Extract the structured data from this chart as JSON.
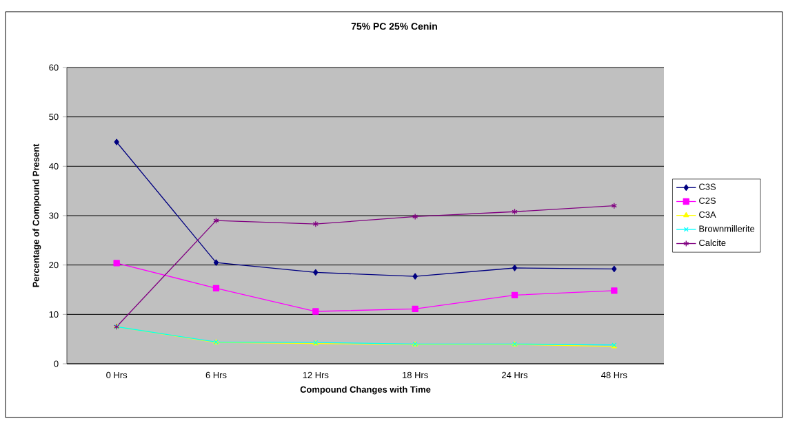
{
  "chart_data": {
    "type": "line",
    "title": "75% PC 25% Cenin",
    "xlabel": "Compound Changes with Time",
    "ylabel": "Percentage of Compound Present",
    "categories": [
      "0 Hrs",
      "6 Hrs",
      "12 Hrs",
      "18 Hrs",
      "24 Hrs",
      "48 Hrs"
    ],
    "series": [
      {
        "name": "C3S",
        "color": "#000080",
        "marker": "diamond",
        "values": [
          44.9,
          20.5,
          18.5,
          17.7,
          19.4,
          19.2
        ]
      },
      {
        "name": "C2S",
        "color": "#ff00ff",
        "marker": "square",
        "values": [
          20.4,
          15.3,
          10.6,
          11.1,
          13.9,
          14.8
        ]
      },
      {
        "name": "C3A",
        "color": "#ffff00",
        "marker": "triangle",
        "values": [
          7.5,
          4.3,
          4.1,
          3.9,
          3.9,
          3.5
        ]
      },
      {
        "name": "Brownmillerite",
        "color": "#00ffff",
        "marker": "cross",
        "values": [
          7.5,
          4.4,
          4.3,
          4.0,
          4.0,
          3.8
        ]
      },
      {
        "name": "Calcite",
        "color": "#800080",
        "marker": "cross",
        "values": [
          7.5,
          29.0,
          28.3,
          29.8,
          30.8,
          32.0
        ]
      }
    ],
    "ylim": [
      0,
      60
    ],
    "yticks": [
      0,
      10,
      20,
      30,
      40,
      50,
      60
    ],
    "grid": "y",
    "legend": "right"
  }
}
